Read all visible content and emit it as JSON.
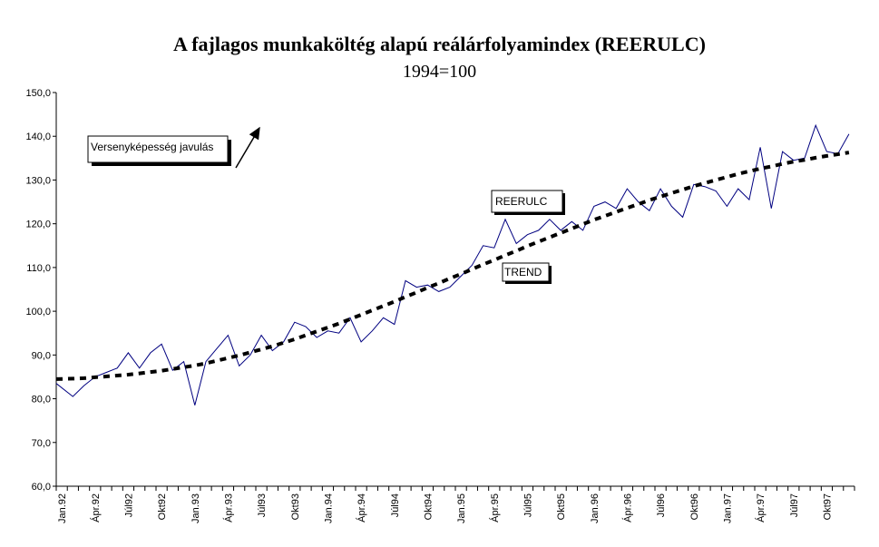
{
  "chart_data": {
    "type": "line",
    "title": "A fajlagos munkaköltég alapú reálárfolyamindex (REERULC)",
    "subtitle": "1994=100",
    "ylim": [
      60,
      150
    ],
    "yticks": [
      "60,0",
      "70,0",
      "80,0",
      "90,0",
      "100,0",
      "110,0",
      "120,0",
      "130,0",
      "140,0",
      "150,0"
    ],
    "x_tick_labels": [
      "Jan.92",
      "Ápr.92",
      "Júl92",
      "Okt92",
      "Jan.93",
      "Ápr.93",
      "Júl93",
      "Okt93",
      "Jan.94",
      "Ápr.94",
      "Júl94",
      "Okt94",
      "Jan.95",
      "Ápr.95",
      "Júl95",
      "Okt95",
      "Jan.96",
      "Ápr.96",
      "Júl96",
      "Okt96",
      "Jan.97",
      "Ápr.97",
      "Júl97",
      "Okt97"
    ],
    "n_months": 72,
    "grid": false,
    "series": [
      {
        "name": "REERULC",
        "style": "solid",
        "color": "#000080",
        "values": [
          83.5,
          80.5,
          83,
          85,
          86,
          87,
          90.5,
          87,
          90.5,
          92.5,
          86.5,
          88.5,
          78.5,
          88.5,
          91.5,
          94.5,
          87.5,
          90,
          94.5,
          91,
          93,
          97.5,
          96.5,
          94,
          95.5,
          95,
          98.5,
          93,
          95.5,
          98.5,
          97,
          107,
          105.5,
          106,
          104.5,
          105.5,
          108,
          110.5,
          115,
          114.5,
          121,
          115.5,
          117.5,
          118.5,
          121,
          118.5,
          120.5,
          118.5,
          124,
          125,
          123.5,
          128,
          125,
          123,
          128,
          124,
          121.5,
          129,
          128.5,
          127.5,
          124,
          128,
          125.5,
          137.5,
          123.5,
          136.5,
          134.5,
          135,
          142.5,
          136.5,
          136,
          140.5
        ]
      },
      {
        "name": "TREND",
        "style": "dashed",
        "color": "#000000",
        "values": [
          84.5,
          84.6,
          84.7,
          84.9,
          85.1,
          85.3,
          85.5,
          85.8,
          86.1,
          86.4,
          86.8,
          87.2,
          87.6,
          88.1,
          88.7,
          89.3,
          89.9,
          90.6,
          91.3,
          92.0,
          92.8,
          93.6,
          94.5,
          95.4,
          96.3,
          97.2,
          98.2,
          99.2,
          100.2,
          101.2,
          102.2,
          103.3,
          104.3,
          105.4,
          106.4,
          107.5,
          108.5,
          109.6,
          110.7,
          111.7,
          112.8,
          113.8,
          114.9,
          115.9,
          116.9,
          117.9,
          118.9,
          119.9,
          120.9,
          121.8,
          122.7,
          123.6,
          124.5,
          125.4,
          126.2,
          127.0,
          127.8,
          128.6,
          129.3,
          130.0,
          130.7,
          131.4,
          132.0,
          132.6,
          133.1,
          133.7,
          134.2,
          134.6,
          135.1,
          135.5,
          135.9,
          136.3
        ]
      }
    ],
    "annotations": {
      "competitiveness": "Versenyképesség javulás",
      "reerulc_label": "REERULC",
      "trend_label": "TREND"
    }
  }
}
